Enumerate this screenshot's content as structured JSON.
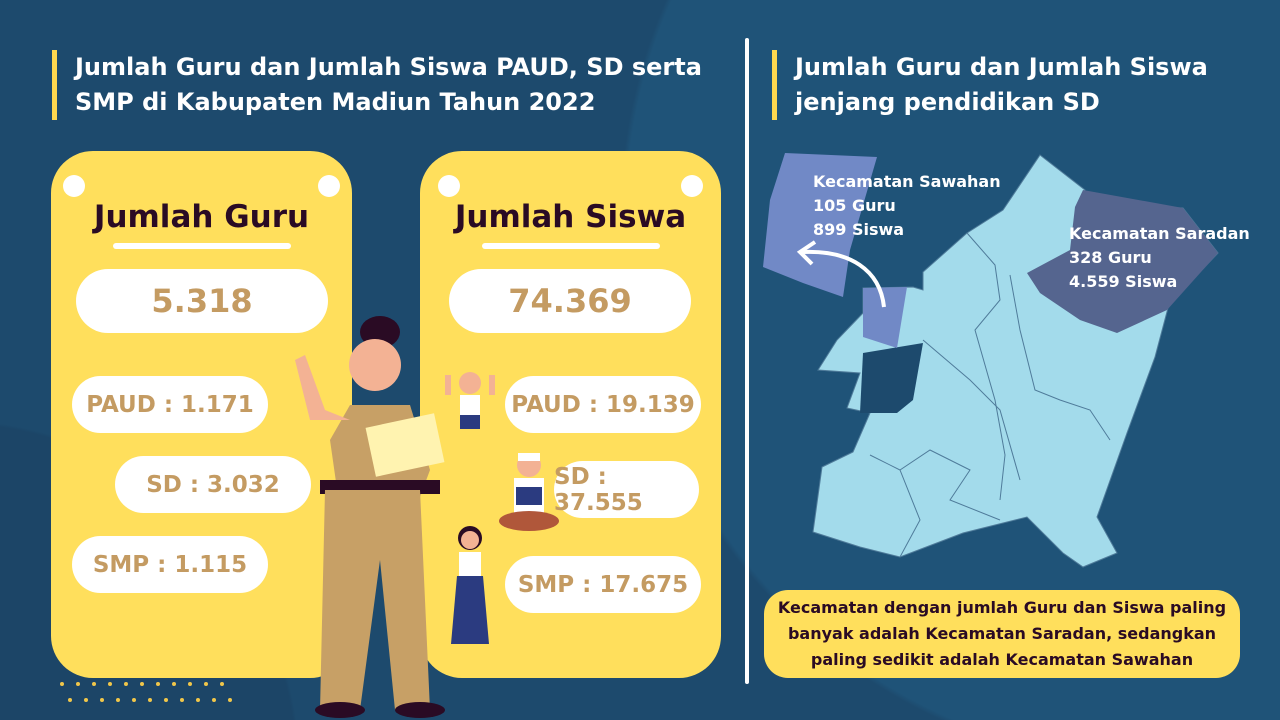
{
  "left_title": "Jumlah Guru dan Jumlah Siswa PAUD, SD serta SMP di Kabupaten Madiun Tahun 2022",
  "right_title": "Jumlah Guru dan Jumlah Siswa jenjang pendidikan SD",
  "guru": {
    "heading": "Jumlah Guru",
    "total": "5.318",
    "paud": "PAUD : 1.171",
    "sd": "SD : 3.032",
    "smp": "SMP : 1.115"
  },
  "siswa": {
    "heading": "Jumlah Siswa",
    "total": "74.369",
    "paud": "PAUD : 19.139",
    "sd": "SD : 37.555",
    "smp": "SMP : 17.675"
  },
  "map": {
    "sawahan": {
      "name": "Kecamatan Sawahan",
      "guru": "105 Guru",
      "siswa": "899 Siswa"
    },
    "saradan": {
      "name": "Kecamatan Saradan",
      "guru": "328 Guru",
      "siswa": "4.559 Siswa"
    },
    "colors": {
      "base": "#a3dbeb",
      "sawahan": "#7189c6",
      "saradan": "#55658f"
    }
  },
  "note": "Kecamatan dengan jumlah Guru dan Siswa paling banyak adalah Kecamatan Saradan, sedangkan paling sedikit adalah Kecamatan Sawahan",
  "colors": {
    "background": "#1d4a6d",
    "card": "#ffdf5c",
    "accent_text": "#c49b62",
    "heading": "#2a0b24"
  }
}
